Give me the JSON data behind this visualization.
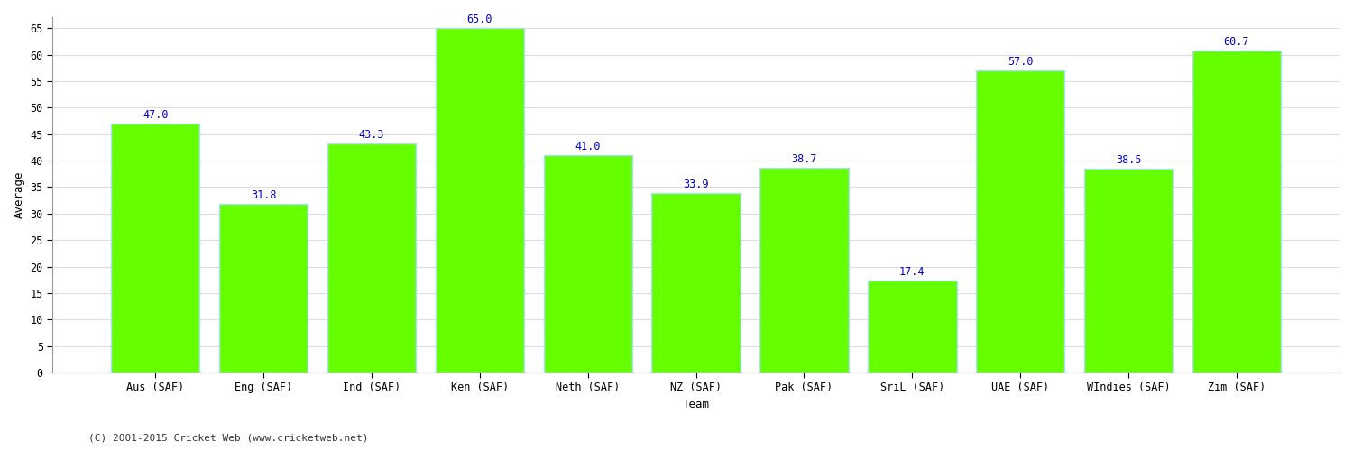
{
  "categories": [
    "Aus (SAF)",
    "Eng (SAF)",
    "Ind (SAF)",
    "Ken (SAF)",
    "Neth (SAF)",
    "NZ (SAF)",
    "Pak (SAF)",
    "SriL (SAF)",
    "UAE (SAF)",
    "WIndies (SAF)",
    "Zim (SAF)"
  ],
  "values": [
    47.0,
    31.8,
    43.3,
    65.0,
    41.0,
    33.9,
    38.7,
    17.4,
    57.0,
    38.5,
    60.7
  ],
  "bar_color": "#66FF00",
  "bar_edge_color": "#aaddff",
  "value_label_color": "#0000CC",
  "ylabel": "Average",
  "xlabel": "Team",
  "ylim": [
    0,
    67
  ],
  "yticks": [
    0,
    5,
    10,
    15,
    20,
    25,
    30,
    35,
    40,
    45,
    50,
    55,
    60,
    65
  ],
  "background_color": "#ffffff",
  "grid_color": "#dddddd",
  "footer_text": "(C) 2001-2015 Cricket Web (www.cricketweb.net)",
  "value_fontsize": 8.5,
  "axis_label_fontsize": 9,
  "tick_label_fontsize": 8.5,
  "footer_fontsize": 8
}
